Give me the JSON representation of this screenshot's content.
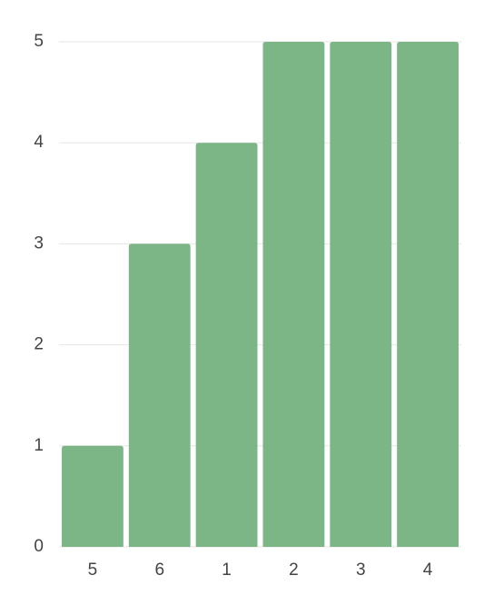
{
  "chart_data": {
    "type": "bar",
    "categories": [
      "5",
      "6",
      "1",
      "2",
      "3",
      "4"
    ],
    "values": [
      1,
      3,
      4,
      5,
      5,
      5
    ],
    "color": "#7cb686",
    "ylim": [
      0,
      5
    ],
    "yticks": [
      0,
      1,
      2,
      3,
      4,
      5
    ],
    "grid": true
  }
}
